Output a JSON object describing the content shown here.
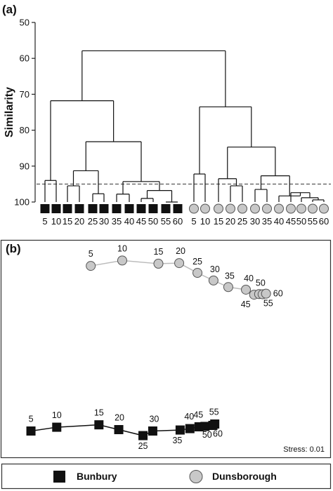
{
  "panels": {
    "a": {
      "label": "(a)"
    },
    "b": {
      "label": "(b)"
    }
  },
  "legend": {
    "bunbury": {
      "label": "Bunbury",
      "color": "#111111",
      "marker": "square"
    },
    "dunsborough": {
      "label": "Dunsborough",
      "color": "#c8c8c8",
      "marker": "circle"
    }
  },
  "chart_data": [
    {
      "type": "dendrogram",
      "ylabel": "Similarity",
      "ylim": [
        100,
        50
      ],
      "yticks": [
        "50",
        "60",
        "70",
        "80",
        "90",
        "100"
      ],
      "reference_line": 95,
      "groups": [
        {
          "name": "Bunbury",
          "leaves": [
            "5",
            "10",
            "15",
            "20",
            "25",
            "30",
            "35",
            "40",
            "45",
            "50",
            "55",
            "60"
          ],
          "merges": [
            {
              "a": "L8",
              "b": "L9",
              "height": 99,
              "id": "M1"
            },
            {
              "a": "L10",
              "b": "L11",
              "height": 100,
              "id": "M2"
            },
            {
              "a": "M1",
              "b": "M2",
              "height": 96.8,
              "id": "M3"
            },
            {
              "a": "L6",
              "b": "L7",
              "height": 97.8,
              "id": "M4"
            },
            {
              "a": "M4",
              "b": "M3",
              "height": 94.3,
              "id": "M5"
            },
            {
              "a": "L4",
              "b": "L5",
              "height": 97.7,
              "id": "M6"
            },
            {
              "a": "L2",
              "b": "L3",
              "height": 95.5,
              "id": "M7"
            },
            {
              "a": "M7",
              "b": "M6",
              "height": 91.3,
              "id": "M8"
            },
            {
              "a": "M8",
              "b": "M5",
              "height": 83.2,
              "id": "M9"
            },
            {
              "a": "L0",
              "b": "L1",
              "height": 94,
              "id": "M10"
            },
            {
              "a": "M10",
              "b": "M9",
              "height": 71.8,
              "id": "M11"
            }
          ]
        },
        {
          "name": "Dunsborough",
          "leaves": [
            "5",
            "10",
            "15",
            "20",
            "25",
            "30",
            "35",
            "40",
            "45",
            "50",
            "55",
            "60"
          ],
          "merges": [
            {
              "a": "L10",
              "b": "L11",
              "height": 99.4,
              "id": "N1"
            },
            {
              "a": "L9",
              "b": "N1",
              "height": 98.8,
              "id": "N2"
            },
            {
              "a": "L8",
              "b": "N2",
              "height": 97.4,
              "id": "N3"
            },
            {
              "a": "L7",
              "b": "N3",
              "height": 98.3,
              "id": "N4"
            },
            {
              "a": "L5",
              "b": "L6",
              "height": 96.5,
              "id": "N5"
            },
            {
              "a": "N5",
              "b": "N4",
              "height": 92.7,
              "id": "N6"
            },
            {
              "a": "L3",
              "b": "L4",
              "height": 95.5,
              "id": "N7"
            },
            {
              "a": "L2",
              "b": "N7",
              "height": 93.5,
              "id": "N8"
            },
            {
              "a": "N8",
              "b": "N6",
              "height": 84.7,
              "id": "N9"
            },
            {
              "a": "L0",
              "b": "L1",
              "height": 92.2,
              "id": "N10"
            },
            {
              "a": "N10",
              "b": "N9",
              "height": 73.5,
              "id": "N11"
            }
          ]
        }
      ],
      "root_height": 57.9
    },
    {
      "type": "scatter",
      "annotation": "Stress: 0.01",
      "xlim": [
        0,
        100
      ],
      "ylim": [
        0,
        100
      ],
      "series": [
        {
          "name": "Dunsborough",
          "points": [
            {
              "label": "5",
              "x": 26.6,
              "y": 89.8
            },
            {
              "label": "10",
              "x": 36.6,
              "y": 92.5
            },
            {
              "label": "15",
              "x": 48.1,
              "y": 90.9
            },
            {
              "label": "20",
              "x": 54.7,
              "y": 91.2
            },
            {
              "label": "25",
              "x": 60.5,
              "y": 86.3
            },
            {
              "label": "30",
              "x": 65.6,
              "y": 82.5
            },
            {
              "label": "35",
              "x": 70.3,
              "y": 79.2
            },
            {
              "label": "40",
              "x": 75.9,
              "y": 77.9
            },
            {
              "label": "45",
              "x": 78.5,
              "y": 75.4
            },
            {
              "label": "50",
              "x": 80.1,
              "y": 75.7
            },
            {
              "label": "55",
              "x": 81.2,
              "y": 75.6
            },
            {
              "label": "60",
              "x": 82.3,
              "y": 75.9
            }
          ]
        },
        {
          "name": "Bunbury",
          "points": [
            {
              "label": "5",
              "x": 7.6,
              "y": 7.2
            },
            {
              "label": "10",
              "x": 15.8,
              "y": 9.1
            },
            {
              "label": "15",
              "x": 29.2,
              "y": 10.3
            },
            {
              "label": "20",
              "x": 35.5,
              "y": 7.9
            },
            {
              "label": "25",
              "x": 43.2,
              "y": 4.9
            },
            {
              "label": "30",
              "x": 46.3,
              "y": 7.2
            },
            {
              "label": "35",
              "x": 55.0,
              "y": 7.7
            },
            {
              "label": "40",
              "x": 58.1,
              "y": 8.4
            },
            {
              "label": "45",
              "x": 61.0,
              "y": 9.3
            },
            {
              "label": "50",
              "x": 62.9,
              "y": 9.5
            },
            {
              "label": "55",
              "x": 66.0,
              "y": 10.7
            },
            {
              "label": "60",
              "x": 65.4,
              "y": 10.0
            }
          ]
        }
      ]
    }
  ]
}
